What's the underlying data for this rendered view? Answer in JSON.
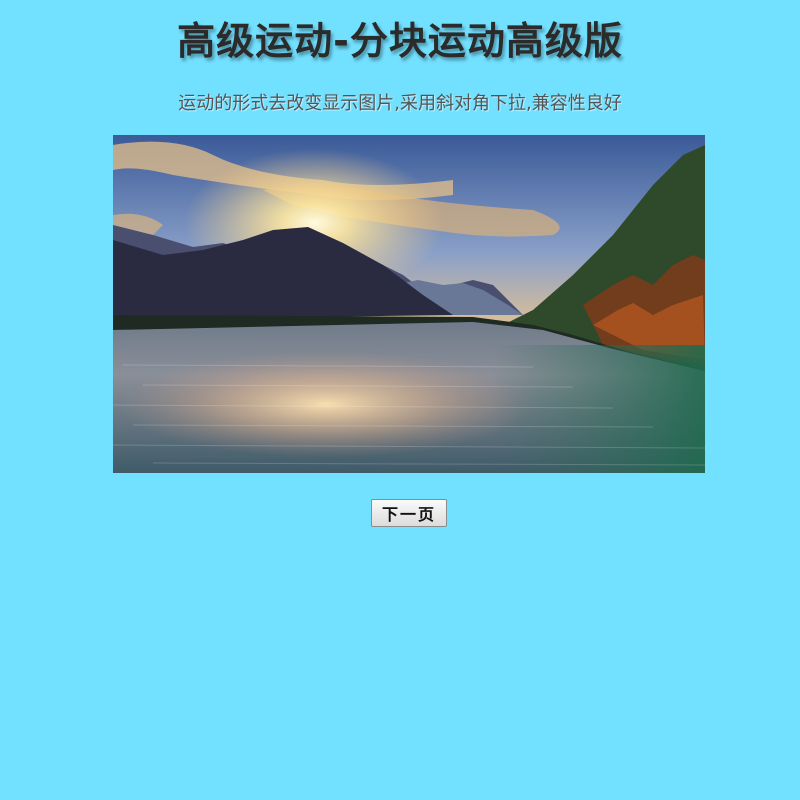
{
  "page": {
    "title": "高级运动-分块运动高级版",
    "subtitle": "运动的形式去改变显示图片,采用斜对角下拉,兼容性良好",
    "next_button_label": "下一页"
  },
  "colors": {
    "background": "#72e0ff",
    "title_text": "#2b2b2b",
    "subtitle_text": "#555555"
  }
}
